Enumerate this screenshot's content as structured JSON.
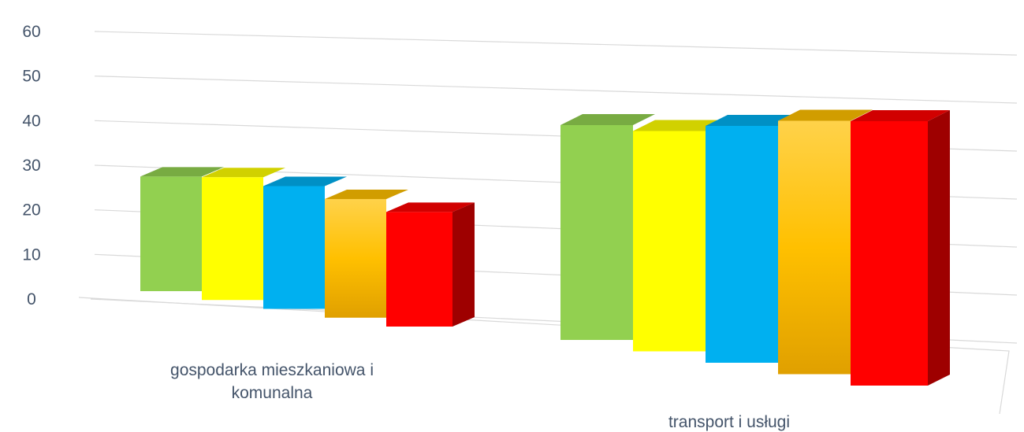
{
  "chart_data": {
    "type": "bar",
    "style": "3d-clustered-column",
    "categories": [
      [
        "gospodarka mieszkaniowa i",
        "komunalna"
      ],
      [
        "transport i usługi"
      ]
    ],
    "series": [
      {
        "color": "#92d050",
        "values": [
          28,
          39
        ]
      },
      {
        "color": "#ffff00",
        "values": [
          30,
          40
        ]
      },
      {
        "color": "#00b0f0",
        "values": [
          30,
          43
        ]
      },
      {
        "color": "#ffc000",
        "values": [
          29,
          46
        ]
      },
      {
        "color": "#ff0000",
        "values": [
          28,
          48
        ]
      }
    ],
    "yticks": [
      "0",
      "10",
      "20",
      "30",
      "40",
      "50",
      "60"
    ],
    "ylim": [
      0,
      60
    ],
    "grid": true,
    "legend": "none"
  }
}
